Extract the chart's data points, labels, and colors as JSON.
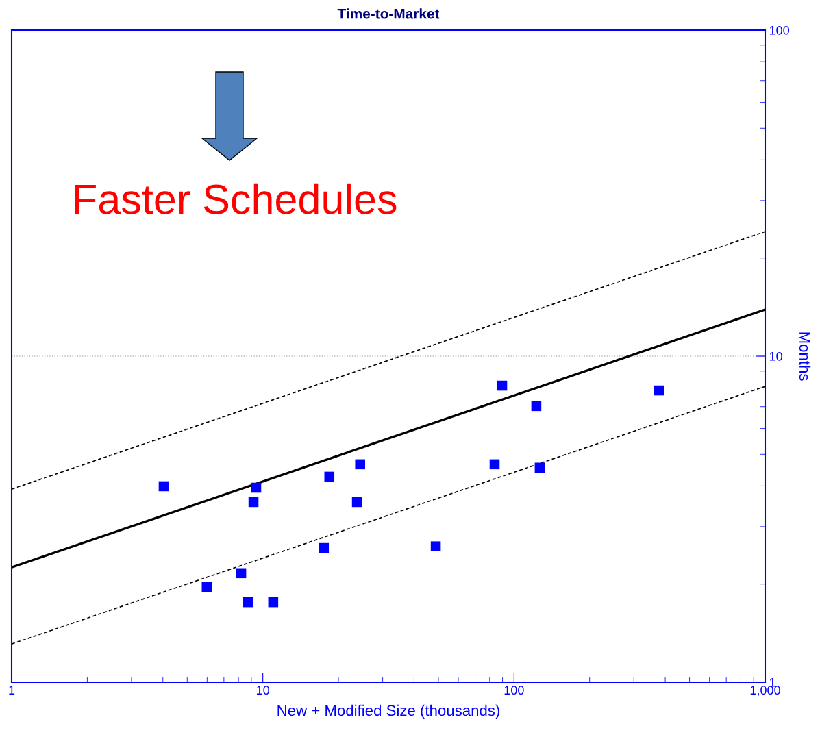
{
  "chart_data": {
    "type": "scatter",
    "title": "Time-to-Market",
    "xlabel": "New + Modified Size (thousands)",
    "ylabel": "Months",
    "log": "xy",
    "grid": "y",
    "xlim": [
      1,
      1000
    ],
    "ylim": [
      1,
      100
    ],
    "xticks": [
      1,
      10,
      100,
      {
        "value": 1000,
        "label": "1,000"
      }
    ],
    "yticks": [
      1,
      10,
      100
    ],
    "annotations": [
      "Faster Schedules"
    ],
    "series": [
      {
        "type": "scatter",
        "color": "#0000ff",
        "marker": "square",
        "x": [
          4.03,
          5.98,
          8.2,
          8.73,
          9.18,
          9.41,
          11.0,
          17.5,
          18.4,
          23.7,
          24.4,
          48.8,
          83.7,
          89.7,
          122.7,
          126.6,
          377.6
        ],
        "values": [
          3.99,
          1.96,
          2.16,
          1.76,
          3.57,
          3.95,
          1.76,
          2.58,
          4.27,
          3.57,
          4.66,
          2.61,
          4.66,
          8.12,
          7.03,
          4.55,
          7.85
        ]
      },
      {
        "type": "line",
        "color": "#000000",
        "line_style": "solid",
        "marker": "none",
        "x": [
          1,
          1000
        ],
        "values": [
          2.25,
          13.9
        ]
      },
      {
        "type": "line",
        "color": "#000000",
        "line_style": "dashed",
        "marker": "none",
        "x": [
          1,
          1000
        ],
        "values": [
          3.91,
          24.1
        ]
      },
      {
        "type": "line",
        "color": "#000000",
        "line_style": "dashed",
        "marker": "none",
        "x": [
          1,
          1000
        ],
        "values": [
          1.31,
          8.08
        ]
      }
    ]
  }
}
